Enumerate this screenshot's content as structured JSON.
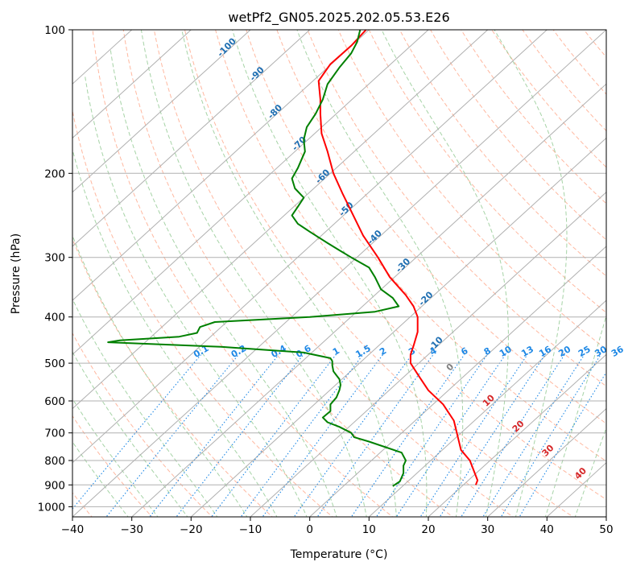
{
  "chart_data": {
    "type": "line",
    "title": "wetPf2_GN05.2025.202.05.53.E26",
    "xlabel": "Temperature (°C)",
    "ylabel": "Pressure (hPa)",
    "xlim": [
      -40,
      50
    ],
    "ylim": [
      1050,
      100
    ],
    "y_scale": "log",
    "grid": true,
    "x_ticks": [
      -40,
      -30,
      -20,
      -10,
      0,
      10,
      20,
      30,
      40,
      50
    ],
    "y_ticks": [
      100,
      200,
      300,
      400,
      500,
      600,
      700,
      800,
      900,
      1000
    ],
    "colors": {
      "temperature": "#ff0000",
      "dewpoint": "#008000",
      "isotherm": "#b0b0b0",
      "dry_adiabat": "#ffa080",
      "moist_adiabat": "#80c080",
      "mixing_ratio": "#1e88e5",
      "isotherm_label": "#1f6fb2",
      "adiabat_label": "#d62728",
      "freezing_label": "#808080"
    },
    "series": [
      {
        "kind": "temperature",
        "points": [
          [
            28,
            900
          ],
          [
            28.3,
            880
          ],
          [
            27,
            800
          ],
          [
            25.5,
            760
          ],
          [
            24.8,
            700
          ],
          [
            24.3,
            660
          ],
          [
            22.5,
            610
          ],
          [
            20,
            570
          ],
          [
            18.3,
            530
          ],
          [
            17,
            500
          ],
          [
            17,
            480
          ],
          [
            17.5,
            460
          ],
          [
            18.2,
            430
          ],
          [
            18.2,
            400
          ],
          [
            17.5,
            380
          ],
          [
            16.2,
            360
          ],
          [
            13.5,
            330
          ],
          [
            11.5,
            300
          ],
          [
            9,
            270
          ],
          [
            7,
            240
          ],
          [
            5.5,
            220
          ],
          [
            4,
            200
          ],
          [
            3,
            180
          ],
          [
            2,
            165
          ],
          [
            1.8,
            150
          ],
          [
            1.8,
            140
          ],
          [
            1.5,
            128
          ],
          [
            3.5,
            118
          ],
          [
            7,
            108
          ],
          [
            9.5,
            100
          ]
        ]
      },
      {
        "kind": "dewpoint",
        "points": [
          [
            14,
            905
          ],
          [
            15.2,
            885
          ],
          [
            15.8,
            850
          ],
          [
            15.8,
            820
          ],
          [
            16.2,
            800
          ],
          [
            15.5,
            770
          ],
          [
            10,
            730
          ],
          [
            7.5,
            715
          ],
          [
            7,
            700
          ],
          [
            5,
            680
          ],
          [
            3,
            665
          ],
          [
            2.2,
            650
          ],
          [
            3.5,
            630
          ],
          [
            3.5,
            610
          ],
          [
            4.5,
            590
          ],
          [
            5,
            570
          ],
          [
            5.2,
            555
          ],
          [
            5,
            540
          ],
          [
            4.5,
            530
          ],
          [
            4,
            520
          ],
          [
            3.8,
            505
          ],
          [
            3.8,
            495
          ],
          [
            3.5,
            488
          ],
          [
            -1,
            475
          ],
          [
            -15,
            462
          ],
          [
            -34,
            452
          ],
          [
            -32,
            448
          ],
          [
            -22,
            440
          ],
          [
            -19,
            432
          ],
          [
            -18.5,
            420
          ],
          [
            -16,
            410
          ],
          [
            0,
            400
          ],
          [
            11,
            390
          ],
          [
            15,
            380
          ],
          [
            14,
            365
          ],
          [
            12,
            350
          ],
          [
            11,
            330
          ],
          [
            10,
            315
          ],
          [
            7,
            300
          ],
          [
            5,
            290
          ],
          [
            3,
            280
          ],
          [
            0,
            265
          ],
          [
            -2,
            255
          ],
          [
            -3,
            245
          ],
          [
            -2,
            235
          ],
          [
            -1,
            225
          ],
          [
            -2.5,
            215
          ],
          [
            -3,
            205
          ],
          [
            -2,
            195
          ],
          [
            -0.8,
            180
          ],
          [
            -1,
            170
          ],
          [
            -0.5,
            160
          ],
          [
            1,
            150
          ],
          [
            2.2,
            140
          ],
          [
            3,
            130
          ],
          [
            5,
            120
          ],
          [
            7,
            112
          ],
          [
            8,
            106
          ],
          [
            8.5,
            100
          ]
        ]
      }
    ],
    "isotherm_labels": [
      "-100",
      "-90",
      "-80",
      "-70",
      "-60",
      "-50",
      "-40",
      "-30",
      "-20",
      "-10"
    ],
    "mixing_ratio_labels": [
      "0.1",
      "0.2",
      "0.4",
      "0.6",
      "1",
      "1.5",
      "2",
      "3",
      "4",
      "6",
      "8",
      "10",
      "13",
      "16",
      "20",
      "25",
      "30",
      "36"
    ],
    "adiabat_labels": [
      "0",
      "10",
      "20",
      "30",
      "40"
    ]
  }
}
